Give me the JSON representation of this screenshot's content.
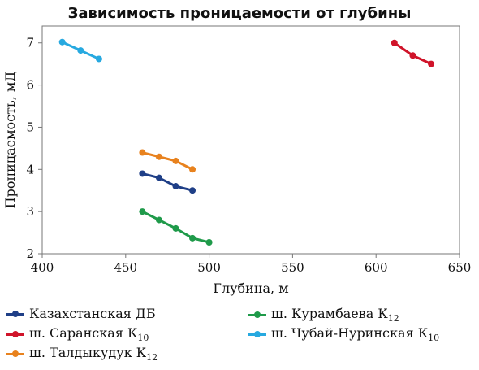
{
  "chart_data": {
    "type": "line",
    "title": "Зависимость проницаемости от глубины",
    "xlabel": "Глубина, м",
    "ylabel": "Проницаемость, мД",
    "xlim": [
      400,
      650
    ],
    "ylim": [
      2,
      7.4
    ],
    "xticks": [
      "400",
      "450",
      "500",
      "550",
      "600",
      "650"
    ],
    "yticks": [
      "2",
      "3",
      "4",
      "5",
      "6",
      "7"
    ],
    "legend_position": "bottom",
    "series": [
      {
        "name": "Казахстанская ДБ",
        "sub": "",
        "color": "#1f3f87",
        "points": [
          [
            460,
            3.9
          ],
          [
            470,
            3.8
          ],
          [
            480,
            3.6
          ],
          [
            490,
            3.5
          ]
        ]
      },
      {
        "name": "ш. Саранская К",
        "sub": "10",
        "color": "#d0142a",
        "points": [
          [
            611,
            7.0
          ],
          [
            622,
            6.7
          ],
          [
            633,
            6.5
          ]
        ]
      },
      {
        "name": "ш. Талдыкудук К",
        "sub": "12",
        "color": "#e8821e",
        "points": [
          [
            460,
            4.4
          ],
          [
            470,
            4.3
          ],
          [
            480,
            4.2
          ],
          [
            490,
            4.0
          ]
        ]
      },
      {
        "name": "ш. Курамбаева К",
        "sub": "12",
        "color": "#1f9a4a",
        "points": [
          [
            460,
            3.0
          ],
          [
            470,
            2.8
          ],
          [
            480,
            2.6
          ],
          [
            490,
            2.37
          ],
          [
            500,
            2.27
          ]
        ]
      },
      {
        "name": "ш. Чубай-Нуринская К",
        "sub": "10",
        "color": "#27a9e0",
        "points": [
          [
            412,
            7.02
          ],
          [
            423,
            6.82
          ],
          [
            434,
            6.62
          ]
        ]
      }
    ]
  }
}
